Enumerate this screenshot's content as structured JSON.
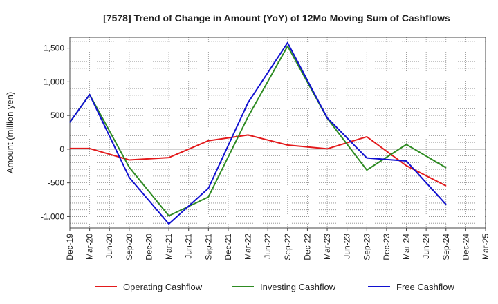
{
  "chart_data": {
    "type": "line",
    "title": "[7578]  Trend of Change in Amount (YoY) of 12Mo Moving Sum of Cashflows",
    "xlabel": "",
    "ylabel": "Amount (million yen)",
    "ylim": [
      -1170,
      1660
    ],
    "yticks": [
      1500,
      1000,
      500,
      0,
      -500,
      -1000
    ],
    "ytick_labels": [
      "1,500",
      "1,000",
      "500",
      "0",
      "-500",
      "-1,000"
    ],
    "categories": [
      "Dec-19",
      "Mar-20",
      "Jun-20",
      "Sep-20",
      "Dec-20",
      "Mar-21",
      "Jun-21",
      "Sep-21",
      "Dec-21",
      "Mar-22",
      "Jun-22",
      "Sep-22",
      "Dec-22",
      "Mar-23",
      "Jun-23",
      "Sep-23",
      "Dec-23",
      "Mar-24",
      "Jun-24",
      "Sep-24",
      "Dec-24",
      "Mar-25"
    ],
    "series": [
      {
        "name": "Operating Cashflow",
        "color": "#e31a1c",
        "values": [
          10,
          10,
          null,
          -160,
          null,
          -125,
          null,
          125,
          null,
          210,
          null,
          60,
          null,
          5,
          null,
          185,
          null,
          -245,
          null,
          -545,
          null,
          null
        ]
      },
      {
        "name": "Investing Cashflow",
        "color": "#2e8b22",
        "values": [
          400,
          810,
          null,
          -270,
          null,
          -990,
          null,
          -710,
          null,
          480,
          null,
          1530,
          null,
          460,
          null,
          -310,
          null,
          70,
          null,
          -275,
          null,
          null
        ]
      },
      {
        "name": "Free Cashflow",
        "color": "#1010d0",
        "values": [
          400,
          810,
          null,
          -420,
          null,
          -1110,
          null,
          -580,
          null,
          690,
          null,
          1580,
          null,
          465,
          null,
          -130,
          null,
          -175,
          null,
          -820,
          null,
          null
        ]
      }
    ],
    "grid": true,
    "legend_position": "bottom"
  }
}
